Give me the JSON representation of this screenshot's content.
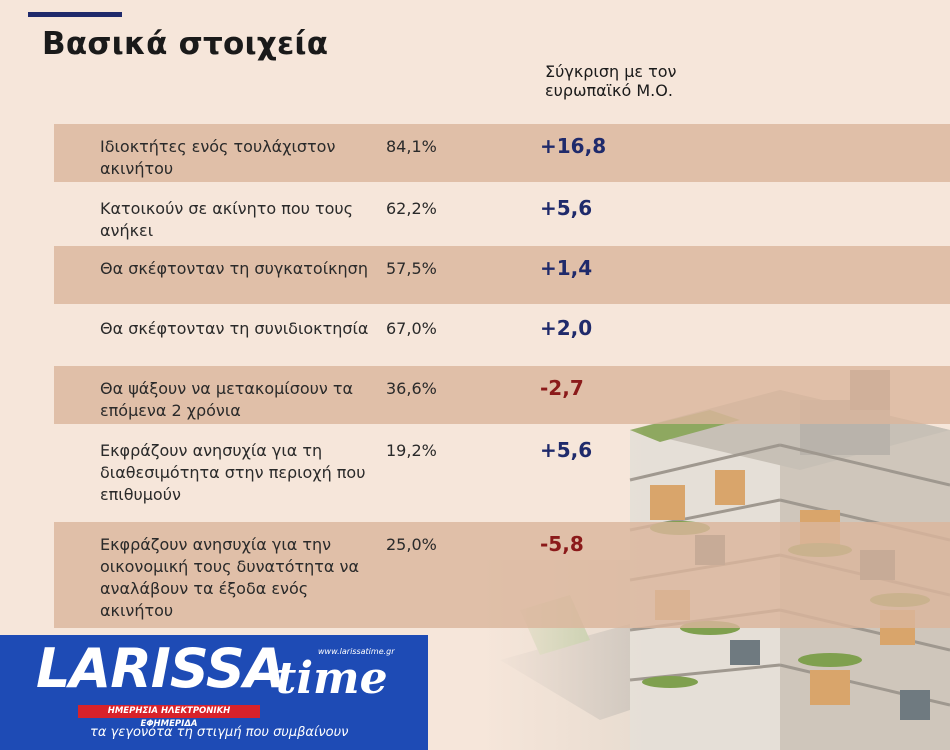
{
  "header": {
    "title": "Βασικά στοιχεία",
    "comparison_label": "Σύγκριση με τον ευρωπαϊκό Μ.Ο."
  },
  "rows": [
    {
      "label": "Ιδιοκτήτες ενός τουλάχιστον ακινήτου",
      "percent": "84,1%",
      "delta": "+16,8"
    },
    {
      "label": "Κατοικούν σε ακίνητο που τους ανήκει",
      "percent": "62,2%",
      "delta": "+5,6"
    },
    {
      "label": "Θα σκέφτονταν τη συγκατοίκηση",
      "percent": "57,5%",
      "delta": "+1,4"
    },
    {
      "label": "Θα σκέφτονταν τη συνιδιοκτησία",
      "percent": "67,0%",
      "delta": "+2,0"
    },
    {
      "label": "Θα ψάξουν να μετακομίσουν τα επόμενα 2 χρόνια",
      "percent": "36,6%",
      "delta": "-2,7"
    },
    {
      "label": "Εκφράζουν ανησυχία για τη διαθεσιμότητα στην περιοχή που επιθυμούν",
      "percent": "19,2%",
      "delta": "+5,6"
    },
    {
      "label": "Εκφράζουν ανησυχία για την οικονομική τους δυνατότητα να αναλάβουν τα έξοδα ενός ακινήτου",
      "percent": "25,0%",
      "delta": "-5,8"
    }
  ],
  "colors": {
    "background": "#f6e6da",
    "row_shade": "#dbb69c",
    "positive": "#1f2a6b",
    "negative": "#8b1a1a",
    "logo_blue": "#1e4bb5",
    "logo_red": "#d8222a"
  },
  "logo": {
    "wordmark": "LARISSA",
    "wordmark_script": "time",
    "url": "www.larissatime.gr",
    "tagline": "ΗΜΕΡΗΣΙΑ ΗΛΕΚΤΡΟΝΙΚΗ ΕΦΗΜΕΡΙΔΑ",
    "slogan": "τα γεγονότα τη στιγμή που συμβαίνουν"
  }
}
